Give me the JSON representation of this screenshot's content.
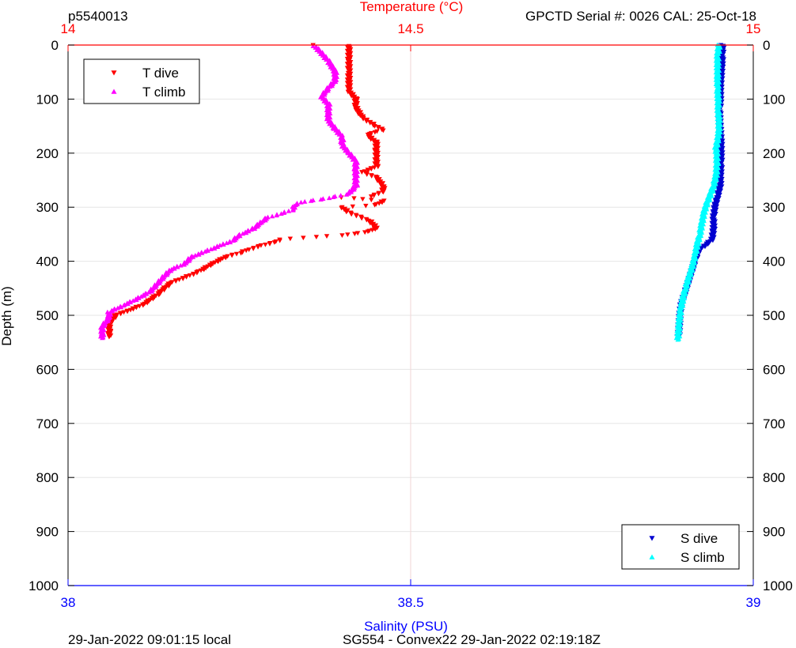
{
  "header": {
    "profile_id": "p5540013",
    "serial_info": "GPCTD Serial #: 0026 CAL: 25-Oct-18"
  },
  "footer": {
    "local_time": "29-Jan-2022 09:01:15 local",
    "mission_info": "SG554 - Convex22 29-Jan-2022 02:19:18Z"
  },
  "chart_data": {
    "type": "scatter",
    "title": "",
    "ylabel": "Depth (m)",
    "ylim": [
      0,
      1000
    ],
    "y_reversed": true,
    "yticks": [
      0,
      100,
      200,
      300,
      400,
      500,
      600,
      700,
      800,
      900,
      1000
    ],
    "ytick_labels": [
      "0",
      "100",
      "200",
      "300",
      "400",
      "500",
      "600",
      "700",
      "800",
      "900",
      "1000"
    ],
    "top_axis": {
      "label": "Temperature (°C)",
      "range": [
        14,
        15
      ],
      "ticks": [
        14,
        14.5,
        15
      ],
      "tick_labels": [
        "14",
        "14.5",
        "15"
      ],
      "color": "#ff0000"
    },
    "bottom_axis": {
      "label": "Salinity (PSU)",
      "range": [
        38,
        39
      ],
      "ticks": [
        38,
        38.5,
        39
      ],
      "tick_labels": [
        "38",
        "38.5",
        "39"
      ],
      "color": "#0000ff"
    },
    "grid": true,
    "legends": [
      {
        "position": "top-left",
        "entries": [
          "T dive",
          "T climb"
        ]
      },
      {
        "position": "bottom-right",
        "entries": [
          "S dive",
          "S climb"
        ]
      }
    ],
    "series": [
      {
        "name": "T dive",
        "axis": "temperature",
        "marker": "triangle-down",
        "color": "#ff0000",
        "points": [
          [
            14.36,
            0
          ],
          [
            14.41,
            2
          ],
          [
            14.41,
            15
          ],
          [
            14.41,
            30
          ],
          [
            14.41,
            50
          ],
          [
            14.41,
            70
          ],
          [
            14.41,
            85
          ],
          [
            14.42,
            100
          ],
          [
            14.42,
            115
          ],
          [
            14.43,
            135
          ],
          [
            14.45,
            150
          ],
          [
            14.46,
            158
          ],
          [
            14.44,
            163
          ],
          [
            14.44,
            170
          ],
          [
            14.45,
            180
          ],
          [
            14.45,
            195
          ],
          [
            14.45,
            210
          ],
          [
            14.45,
            225
          ],
          [
            14.43,
            235
          ],
          [
            14.45,
            245
          ],
          [
            14.46,
            260
          ],
          [
            14.46,
            272
          ],
          [
            14.44,
            280
          ],
          [
            14.4,
            282
          ],
          [
            14.46,
            288
          ],
          [
            14.45,
            296
          ],
          [
            14.4,
            300
          ],
          [
            14.41,
            310
          ],
          [
            14.44,
            325
          ],
          [
            14.45,
            338
          ],
          [
            14.44,
            345
          ],
          [
            14.4,
            352
          ],
          [
            14.36,
            355
          ],
          [
            14.31,
            360
          ],
          [
            14.3,
            365
          ],
          [
            14.28,
            372
          ],
          [
            14.26,
            380
          ],
          [
            14.25,
            385
          ],
          [
            14.23,
            392
          ],
          [
            14.21,
            405
          ],
          [
            14.19,
            420
          ],
          [
            14.15,
            440
          ],
          [
            14.13,
            462
          ],
          [
            14.11,
            480
          ],
          [
            14.09,
            490
          ],
          [
            14.07,
            500
          ],
          [
            14.06,
            515
          ],
          [
            14.06,
            530
          ],
          [
            14.06,
            540
          ]
        ]
      },
      {
        "name": "T climb",
        "axis": "temperature",
        "marker": "triangle-up",
        "color": "#ff00ff",
        "points": [
          [
            14.36,
            2
          ],
          [
            14.37,
            15
          ],
          [
            14.38,
            30
          ],
          [
            14.39,
            50
          ],
          [
            14.39,
            65
          ],
          [
            14.38,
            80
          ],
          [
            14.37,
            95
          ],
          [
            14.38,
            110
          ],
          [
            14.38,
            125
          ],
          [
            14.38,
            140
          ],
          [
            14.39,
            155
          ],
          [
            14.4,
            170
          ],
          [
            14.4,
            185
          ],
          [
            14.41,
            200
          ],
          [
            14.42,
            215
          ],
          [
            14.42,
            230
          ],
          [
            14.42,
            245
          ],
          [
            14.42,
            260
          ],
          [
            14.41,
            275
          ],
          [
            14.38,
            283
          ],
          [
            14.36,
            287
          ],
          [
            14.34,
            291
          ],
          [
            14.33,
            296
          ],
          [
            14.33,
            304
          ],
          [
            14.31,
            312
          ],
          [
            14.29,
            320
          ],
          [
            14.28,
            330
          ],
          [
            14.27,
            340
          ],
          [
            14.25,
            352
          ],
          [
            14.24,
            362
          ],
          [
            14.22,
            372
          ],
          [
            14.2,
            382
          ],
          [
            14.18,
            392
          ],
          [
            14.17,
            405
          ],
          [
            14.15,
            415
          ],
          [
            14.14,
            428
          ],
          [
            14.13,
            442
          ],
          [
            14.12,
            456
          ],
          [
            14.1,
            470
          ],
          [
            14.08,
            482
          ],
          [
            14.06,
            494
          ],
          [
            14.06,
            505
          ],
          [
            14.05,
            520
          ],
          [
            14.05,
            535
          ],
          [
            14.05,
            542
          ]
        ]
      },
      {
        "name": "S dive",
        "axis": "salinity",
        "marker": "triangle-down",
        "color": "#0000d0",
        "points": [
          [
            38.955,
            0
          ],
          [
            38.955,
            20
          ],
          [
            38.954,
            40
          ],
          [
            38.953,
            60
          ],
          [
            38.952,
            80
          ],
          [
            38.952,
            100
          ],
          [
            38.951,
            120
          ],
          [
            38.951,
            140
          ],
          [
            38.952,
            160
          ],
          [
            38.953,
            180
          ],
          [
            38.953,
            200
          ],
          [
            38.953,
            220
          ],
          [
            38.952,
            240
          ],
          [
            38.952,
            260
          ],
          [
            38.948,
            280
          ],
          [
            38.944,
            300
          ],
          [
            38.942,
            320
          ],
          [
            38.942,
            340
          ],
          [
            38.94,
            360
          ],
          [
            38.93,
            370
          ],
          [
            38.92,
            380
          ],
          [
            38.915,
            400
          ],
          [
            38.91,
            420
          ],
          [
            38.905,
            440
          ],
          [
            38.9,
            460
          ],
          [
            38.895,
            480
          ],
          [
            38.893,
            500
          ],
          [
            38.892,
            520
          ],
          [
            38.891,
            540
          ]
        ]
      },
      {
        "name": "S climb",
        "axis": "salinity",
        "marker": "triangle-up",
        "color": "#00ffff",
        "points": [
          [
            38.95,
            0
          ],
          [
            38.948,
            20
          ],
          [
            38.948,
            40
          ],
          [
            38.948,
            60
          ],
          [
            38.948,
            80
          ],
          [
            38.949,
            100
          ],
          [
            38.949,
            120
          ],
          [
            38.95,
            140
          ],
          [
            38.95,
            160
          ],
          [
            38.948,
            175
          ],
          [
            38.946,
            190
          ],
          [
            38.947,
            205
          ],
          [
            38.947,
            220
          ],
          [
            38.946,
            240
          ],
          [
            38.942,
            260
          ],
          [
            38.938,
            275
          ],
          [
            38.933,
            290
          ],
          [
            38.928,
            310
          ],
          [
            38.925,
            330
          ],
          [
            38.922,
            350
          ],
          [
            38.918,
            370
          ],
          [
            38.915,
            390
          ],
          [
            38.911,
            410
          ],
          [
            38.906,
            430
          ],
          [
            38.901,
            450
          ],
          [
            38.897,
            470
          ],
          [
            38.894,
            490
          ],
          [
            38.892,
            510
          ],
          [
            38.891,
            530
          ],
          [
            38.89,
            545
          ]
        ]
      }
    ]
  }
}
